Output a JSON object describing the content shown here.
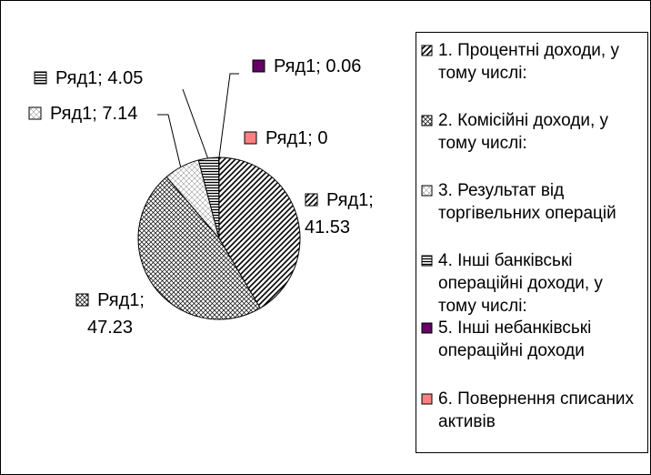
{
  "chart_data": {
    "type": "pie",
    "categories": [
      "1. Процентні доходи, у тому числі:",
      "2. Комісійні доходи, у тому числі:",
      "3. Результат від торгівельних операцій",
      "4. Інші банківські операційні доходи, у тому числі:",
      "5. Інші небанківські операційні доходи",
      "6. Повернення списаних активів"
    ],
    "values": [
      41.53,
      47.23,
      7.14,
      4.05,
      0.06,
      0
    ],
    "value_labels": [
      "Ряд1; 41.53",
      "Ряд1; 47.23",
      "Ряд1; 7.14",
      "Ряд1; 4.05",
      "Ряд1; 0.06",
      "Ряд1; 0"
    ],
    "patterns": [
      "diagonal",
      "cross",
      "diamond",
      "horizontal",
      "solid",
      "solid"
    ],
    "colors": [
      "#000000",
      "#000000",
      "#000000",
      "#000000",
      "#660066",
      "#ff8080"
    ],
    "legend": "right"
  }
}
